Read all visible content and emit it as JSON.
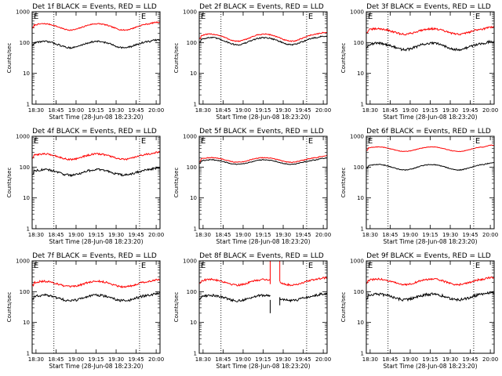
{
  "window": {
    "title": ""
  },
  "chart_data": [
    {
      "type": "line",
      "title": "Det 1f BLACK = Events, RED = LLD",
      "xlabel": "Start Time (28-Jun-08 18:23:20)",
      "ylabel": "Counts/sec",
      "yscale": "log",
      "ylim": [
        1,
        1000
      ],
      "x_tick_labels": [
        "18:30",
        "18:45",
        "19:00",
        "19:15",
        "19:30",
        "19:45",
        "20:00"
      ],
      "y_tick_labels": [
        "1",
        "10",
        "100",
        "1000"
      ],
      "event_markers": [
        "E",
        "E"
      ],
      "series": [
        {
          "name": "LLD",
          "color": "#ff0000",
          "base": 300,
          "amp": 1.6,
          "noise": 0.04
        },
        {
          "name": "Events",
          "color": "#000000",
          "base": 80,
          "amp": 1.6,
          "noise": 0.06
        }
      ]
    },
    {
      "type": "line",
      "title": "Det 2f BLACK = Events, RED = LLD",
      "xlabel": "Start Time (28-Jun-08 18:23:20)",
      "ylabel": "Counts/sec",
      "yscale": "log",
      "ylim": [
        1,
        1000
      ],
      "x_tick_labels": [
        "18:30",
        "18:45",
        "19:00",
        "19:15",
        "19:30",
        "19:45",
        "20:00"
      ],
      "y_tick_labels": [
        "1",
        "10",
        "100",
        "1000"
      ],
      "event_markers": [
        "E",
        "E"
      ],
      "series": [
        {
          "name": "LLD",
          "color": "#ff0000",
          "base": 130,
          "amp": 1.7,
          "noise": 0.04
        },
        {
          "name": "Events",
          "color": "#000000",
          "base": 100,
          "amp": 1.7,
          "noise": 0.05
        }
      ]
    },
    {
      "type": "line",
      "title": "Det 3f BLACK = Events, RED = LLD",
      "xlabel": "Start Time (28-Jun-08 18:23:20)",
      "ylabel": "Counts/sec",
      "yscale": "log",
      "ylim": [
        1,
        1000
      ],
      "x_tick_labels": [
        "18:30",
        "18:45",
        "19:00",
        "19:15",
        "19:30",
        "19:45",
        "20:00"
      ],
      "y_tick_labels": [
        "1",
        "10",
        "100",
        "1000"
      ],
      "event_markers": [
        "E",
        "E"
      ],
      "series": [
        {
          "name": "LLD",
          "color": "#ff0000",
          "base": 220,
          "amp": 1.5,
          "noise": 0.07
        },
        {
          "name": "Events",
          "color": "#000000",
          "base": 70,
          "amp": 1.6,
          "noise": 0.09
        }
      ]
    },
    {
      "type": "line",
      "title": "Det 4f BLACK = Events, RED = LLD",
      "xlabel": "Start Time (28-Jun-08 18:23:20)",
      "ylabel": "Counts/sec",
      "yscale": "log",
      "ylim": [
        1,
        1000
      ],
      "x_tick_labels": [
        "18:30",
        "18:45",
        "19:00",
        "19:15",
        "19:30",
        "19:45",
        "20:00"
      ],
      "y_tick_labels": [
        "1",
        "10",
        "100",
        "1000"
      ],
      "event_markers": [
        "E",
        "E"
      ],
      "series": [
        {
          "name": "LLD",
          "color": "#ff0000",
          "base": 210,
          "amp": 1.5,
          "noise": 0.06
        },
        {
          "name": "Events",
          "color": "#000000",
          "base": 65,
          "amp": 1.5,
          "noise": 0.08
        }
      ]
    },
    {
      "type": "line",
      "title": "Det 5f BLACK = Events, RED = LLD",
      "xlabel": "Start Time (28-Jun-08 18:23:20)",
      "ylabel": "Counts/sec",
      "yscale": "log",
      "ylim": [
        1,
        1000
      ],
      "x_tick_labels": [
        "18:30",
        "18:45",
        "19:00",
        "19:15",
        "19:30",
        "19:45",
        "20:00"
      ],
      "y_tick_labels": [
        "1",
        "10",
        "100",
        "1000"
      ],
      "event_markers": [
        "E",
        "E"
      ],
      "series": [
        {
          "name": "LLD",
          "color": "#ff0000",
          "base": 170,
          "amp": 1.4,
          "noise": 0.03
        },
        {
          "name": "Events",
          "color": "#000000",
          "base": 145,
          "amp": 1.4,
          "noise": 0.03
        }
      ]
    },
    {
      "type": "line",
      "title": "Det 6f BLACK = Events, RED = LLD",
      "xlabel": "Start Time (28-Jun-08 18:23:20)",
      "ylabel": "Counts/sec",
      "yscale": "log",
      "ylim": [
        1,
        1000
      ],
      "x_tick_labels": [
        "18:30",
        "18:45",
        "19:00",
        "19:15",
        "19:30",
        "19:45",
        "20:00"
      ],
      "y_tick_labels": [
        "1",
        "10",
        "100",
        "1000"
      ],
      "event_markers": [
        "E",
        "E"
      ],
      "series": [
        {
          "name": "LLD",
          "color": "#ff0000",
          "base": 380,
          "amp": 1.4,
          "noise": 0.02
        },
        {
          "name": "Events",
          "color": "#000000",
          "base": 95,
          "amp": 1.5,
          "noise": 0.03
        }
      ]
    },
    {
      "type": "line",
      "title": "Det 7f BLACK = Events, RED = LLD",
      "xlabel": "Start Time (28-Jun-08 18:23:20)",
      "ylabel": "Counts/sec",
      "yscale": "log",
      "ylim": [
        1,
        1000
      ],
      "x_tick_labels": [
        "18:30",
        "18:45",
        "19:00",
        "19:15",
        "19:30",
        "19:45",
        "20:00"
      ],
      "y_tick_labels": [
        "1",
        "10",
        "100",
        "1000"
      ],
      "event_markers": [
        "E",
        "E"
      ],
      "series": [
        {
          "name": "LLD",
          "color": "#ff0000",
          "base": 170,
          "amp": 1.5,
          "noise": 0.07
        },
        {
          "name": "Events",
          "color": "#000000",
          "base": 60,
          "amp": 1.5,
          "noise": 0.09
        }
      ]
    },
    {
      "type": "line",
      "title": "Det 8f BLACK = Events, RED = LLD",
      "xlabel": "Start Time (28-Jun-08 18:23:20)",
      "ylabel": "Counts/sec",
      "yscale": "log",
      "ylim": [
        1,
        1000
      ],
      "x_tick_labels": [
        "18:30",
        "18:45",
        "19:00",
        "19:15",
        "19:30",
        "19:45",
        "20:00"
      ],
      "y_tick_labels": [
        "1",
        "10",
        "100",
        "1000"
      ],
      "event_markers": [
        "E",
        "E"
      ],
      "series": [
        {
          "name": "LLD",
          "color": "#ff0000",
          "base": 195,
          "amp": 1.5,
          "noise": 0.07,
          "spike": {
            "t": 0.555,
            "value": 1000,
            "gap": [
              0.555,
              0.63
            ]
          }
        },
        {
          "name": "Events",
          "color": "#000000",
          "base": 60,
          "amp": 1.5,
          "noise": 0.09,
          "spike": {
            "t": 0.555,
            "value": 20,
            "gap": [
              0.555,
              0.63
            ]
          }
        }
      ]
    },
    {
      "type": "line",
      "title": "Det 9f BLACK = Events, RED = LLD",
      "xlabel": "Start Time (28-Jun-08 18:23:20)",
      "ylabel": "Counts/sec",
      "yscale": "log",
      "ylim": [
        1,
        1000
      ],
      "x_tick_labels": [
        "18:30",
        "18:45",
        "19:00",
        "19:15",
        "19:30",
        "19:45",
        "20:00"
      ],
      "y_tick_labels": [
        "1",
        "10",
        "100",
        "1000"
      ],
      "event_markers": [
        "E",
        "E"
      ],
      "series": [
        {
          "name": "LLD",
          "color": "#ff0000",
          "base": 200,
          "amp": 1.5,
          "noise": 0.07
        },
        {
          "name": "Events",
          "color": "#000000",
          "base": 65,
          "amp": 1.5,
          "noise": 0.1
        }
      ]
    }
  ]
}
